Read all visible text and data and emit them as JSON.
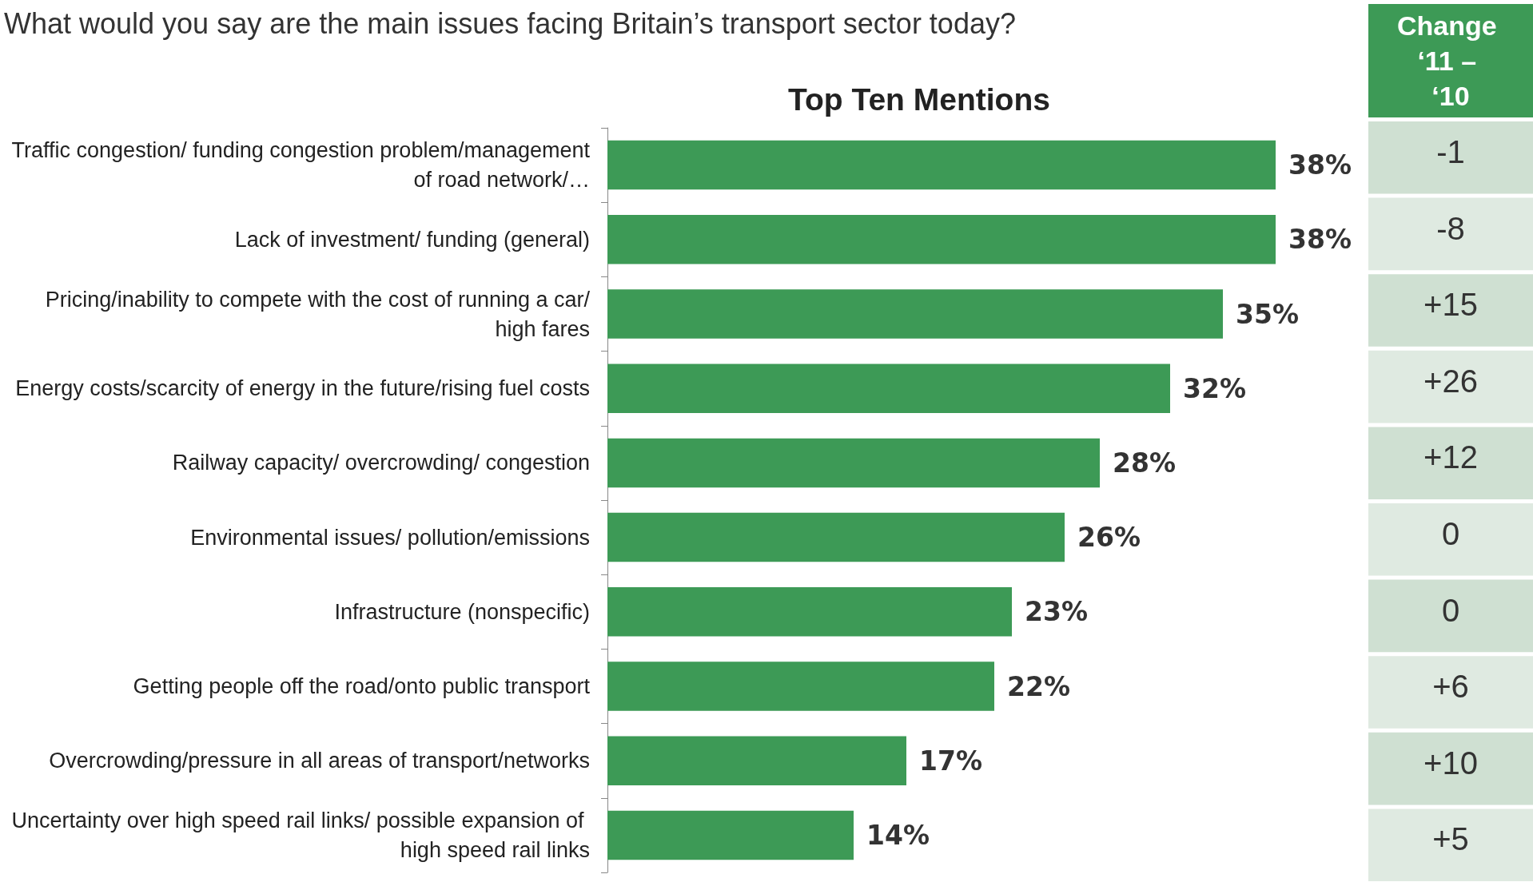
{
  "chart_data": {
    "type": "bar",
    "orientation": "horizontal",
    "title": "What would you say are the main issues facing Britain’s transport sector today?",
    "subtitle": "Top Ten Mentions",
    "categories": [
      "Traffic congestion/ funding congestion problem/management of road network/…",
      "Lack of investment/ funding (general)",
      "Pricing/inability to compete with the cost of running a car/high fares",
      "Energy costs/scarcity of energy in the future/rising fuel costs",
      "Railway capacity/ overcrowding/ congestion",
      "Environmental issues/ pollution/emissions",
      "Infrastructure (nonspecific)",
      "Getting people off the road/onto public transport",
      "Overcrowding/pressure in all areas of transport/networks",
      "Uncertainty over high speed rail links/ possible expansion of high speed rail links"
    ],
    "values": [
      38,
      38,
      35,
      32,
      28,
      26,
      23,
      22,
      17,
      14
    ],
    "value_labels": [
      "38%",
      "38%",
      "35%",
      "32%",
      "28%",
      "26%",
      "23%",
      "22%",
      "17%",
      "14%"
    ],
    "color": "#3d9a56",
    "annotations": [
      "Change ‘11 – ‘10",
      "-1",
      "-8",
      "+15",
      "+26",
      "+12",
      "0",
      "0",
      "+6",
      "+10",
      "+5"
    ]
  }
}
